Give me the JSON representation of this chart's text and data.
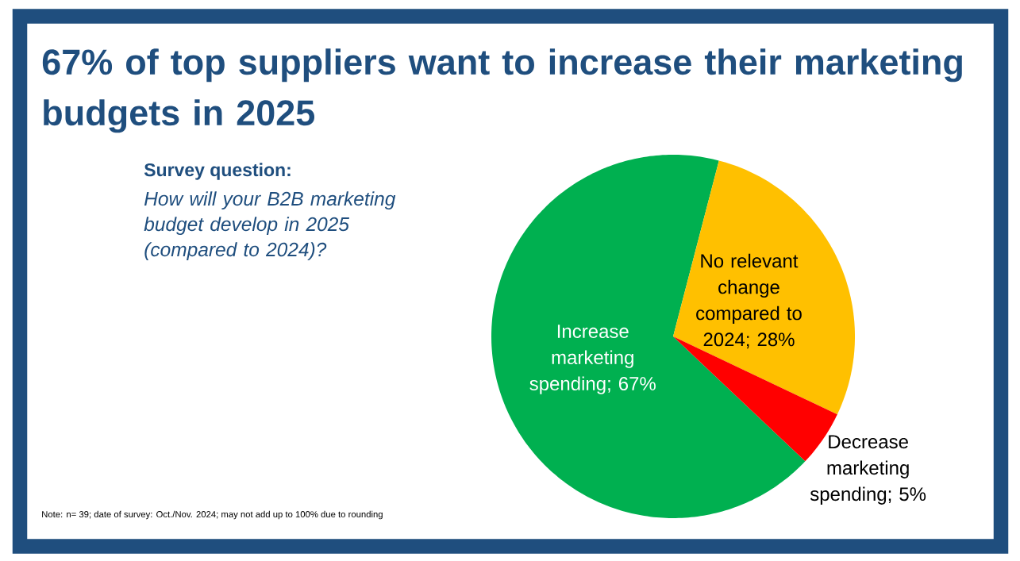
{
  "chart_data": {
    "type": "pie",
    "title": "67% of top suppliers want to increase their marketing budgets in 2025",
    "subtitle": "Survey question:",
    "annotations": [
      "How will your B2B marketing budget develop in 2025 (compared to 2024)?",
      "Note: n= 39; date of survey: Oct./Nov. 2024; may not add up to 100% due to rounding"
    ],
    "categories": [
      "Increase marketing spending; 67%",
      "No relevant change compared to 2024; 28%",
      "Decrease marketing spending; 5%"
    ],
    "values": [
      67,
      28,
      5
    ],
    "colors": [
      "#00b050",
      "#ffc000",
      "#ff0000"
    ]
  }
}
